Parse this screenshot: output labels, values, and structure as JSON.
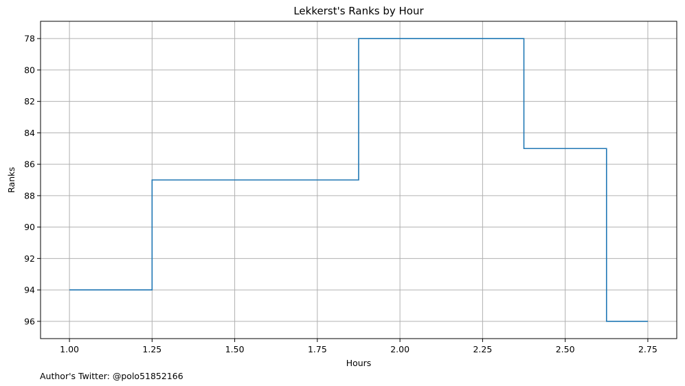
{
  "chart_data": {
    "type": "line",
    "step": "post",
    "title": "Lekkerst's Ranks by Hour",
    "xlabel": "Hours",
    "ylabel": "Ranks",
    "footnote": "Author's Twitter: @polo51852166",
    "xlim": [
      0.9125,
      2.8375
    ],
    "ylim": [
      97.1,
      76.9
    ],
    "y_inverted": true,
    "grid": true,
    "x_ticks": [
      1.0,
      1.25,
      1.5,
      1.75,
      2.0,
      2.25,
      2.5,
      2.75
    ],
    "x_tick_labels": [
      "1.00",
      "1.25",
      "1.50",
      "1.75",
      "2.00",
      "2.25",
      "2.50",
      "2.75"
    ],
    "y_ticks": [
      78,
      80,
      82,
      84,
      86,
      88,
      90,
      92,
      94,
      96
    ],
    "y_tick_labels": [
      "78",
      "80",
      "82",
      "84",
      "86",
      "88",
      "90",
      "92",
      "94",
      96
    ],
    "line_color": "#1f77b4",
    "grid_color": "#b0b0b0",
    "series": [
      {
        "x": [
          1.0,
          1.25,
          1.875,
          2.375,
          2.625,
          2.75
        ],
        "y": [
          94,
          87,
          78,
          85,
          96,
          96
        ]
      }
    ]
  }
}
